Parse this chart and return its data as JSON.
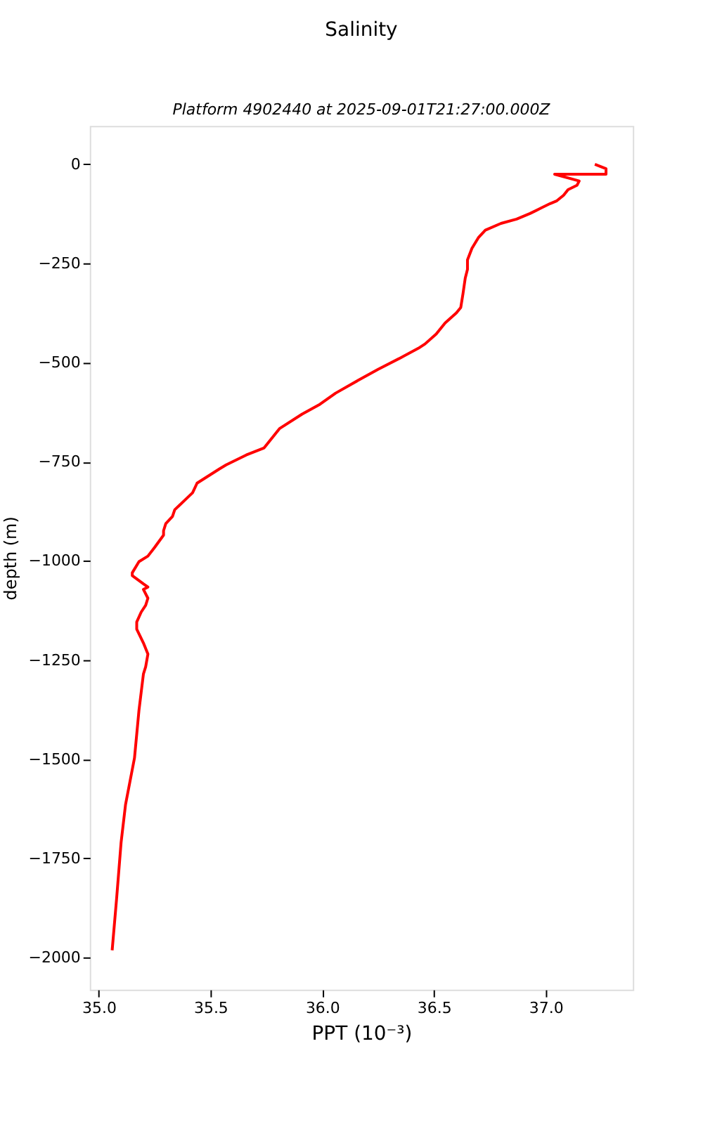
{
  "chart_data": {
    "type": "line",
    "title": "Salinity",
    "subtitle": "Platform 4902440 at 2025-09-01T21:27:00.000Z",
    "xlabel": "PPT (10⁻³)",
    "ylabel": "depth (m)",
    "xlim": [
      34.96,
      37.39
    ],
    "xticks": [
      {
        "value": 35.0,
        "label": "35.0"
      },
      35.5,
      {
        "value": 36.0,
        "label": "36.0"
      },
      36.5,
      {
        "value": 37.0,
        "label": "37.0"
      }
    ],
    "ylim": [
      -2081,
      97
    ],
    "yticks": [
      {
        "value": -2000,
        "label": "−2000"
      },
      {
        "value": -1750,
        "label": "−1750"
      },
      {
        "value": -1500,
        "label": "−1500"
      },
      {
        "value": -1250,
        "label": "−1250"
      },
      {
        "value": -1000,
        "label": "−1000"
      },
      {
        "value": -750,
        "label": "−750"
      },
      {
        "value": -500,
        "label": "−500"
      },
      {
        "value": -250,
        "label": "−250"
      },
      0
    ],
    "grid": false,
    "marker": "none",
    "line_style": "solid",
    "series": [
      {
        "color": "#ff0000",
        "x": [
          37.22,
          37.27,
          37.27,
          37.04,
          37.15,
          37.14,
          37.1,
          37.08,
          37.05,
          37.02,
          36.98,
          36.93,
          36.87,
          36.8,
          36.73,
          36.7,
          36.67,
          36.65,
          36.65,
          36.64,
          36.63,
          36.62,
          36.6,
          36.55,
          36.51,
          36.46,
          36.43,
          36.35,
          36.25,
          36.16,
          36.06,
          35.99,
          35.91,
          35.81,
          35.74,
          35.66,
          35.57,
          35.54,
          35.44,
          35.42,
          35.34,
          35.33,
          35.3,
          35.29,
          35.29,
          35.25,
          35.22,
          35.18,
          35.15,
          35.15,
          35.2,
          35.22,
          35.2,
          35.22,
          35.21,
          35.19,
          35.17,
          35.17,
          35.2,
          35.22,
          35.21,
          35.2,
          35.19,
          35.18,
          35.16,
          35.12,
          35.1,
          35.08,
          35.06
        ],
        "values": [
          0,
          -11,
          -25,
          -25,
          -42,
          -53,
          -64,
          -78,
          -92,
          -99,
          -110,
          -124,
          -138,
          -149,
          -166,
          -184,
          -212,
          -241,
          -265,
          -287,
          -326,
          -361,
          -375,
          -400,
          -428,
          -453,
          -464,
          -488,
          -517,
          -545,
          -577,
          -605,
          -630,
          -666,
          -715,
          -733,
          -758,
          -768,
          -804,
          -828,
          -871,
          -888,
          -906,
          -924,
          -935,
          -966,
          -988,
          -1002,
          -1030,
          -1037,
          -1058,
          -1066,
          -1072,
          -1094,
          -1112,
          -1129,
          -1154,
          -1172,
          -1207,
          -1235,
          -1267,
          -1285,
          -1331,
          -1377,
          -1497,
          -1614,
          -1710,
          -1851,
          -1982
        ]
      }
    ]
  }
}
